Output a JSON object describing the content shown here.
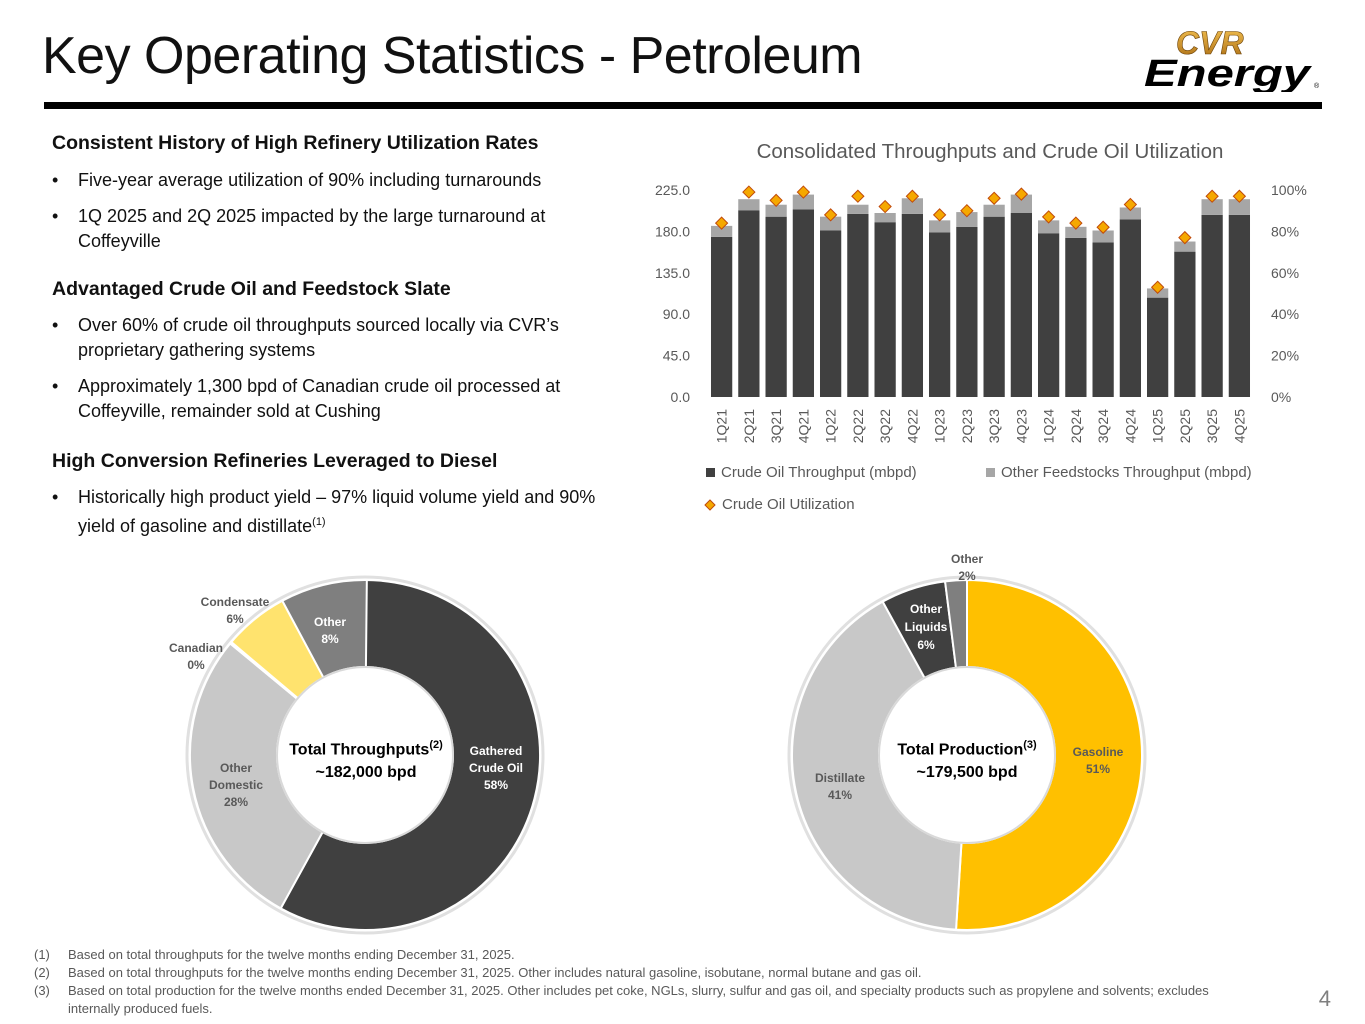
{
  "header": {
    "title": "Key Operating Statistics - Petroleum",
    "logo_line1": "CVR",
    "logo_line2": "Energy",
    "logo_mark": "®"
  },
  "sections": [
    {
      "heading": "Consistent History of High Refinery Utilization Rates",
      "bullets": [
        {
          "text": "Five-year average utilization of 90% including turnarounds",
          "sup": ""
        },
        {
          "text": "1Q 2025 and 2Q 2025 impacted by the large turnaround at Coffeyville",
          "sup": ""
        }
      ]
    },
    {
      "heading": "Advantaged Crude Oil and Feedstock Slate",
      "bullets": [
        {
          "text": "Over 60% of crude oil throughputs sourced locally via CVR’s proprietary gathering systems",
          "sup": ""
        },
        {
          "text": "Approximately 1,300 bpd of Canadian crude oil processed at Coffeyville, remainder sold at Cushing",
          "sup": ""
        }
      ]
    },
    {
      "heading": "High Conversion Refineries Leveraged to Diesel",
      "bullets": [
        {
          "text": "Historically high product yield – 97% liquid volume yield and 90% yield of gasoline and distillate",
          "sup": "(1)"
        }
      ]
    }
  ],
  "chart_data": [
    {
      "type": "bar",
      "title": "Consolidated Throughputs and Crude Oil Utilization",
      "categories": [
        "1Q21",
        "2Q21",
        "3Q21",
        "4Q21",
        "1Q22",
        "2Q22",
        "3Q22",
        "4Q22",
        "1Q23",
        "2Q23",
        "3Q23",
        "4Q23",
        "1Q24",
        "2Q24",
        "3Q24",
        "4Q24",
        "1Q25",
        "2Q25",
        "3Q25",
        "4Q25"
      ],
      "stacked": true,
      "series": [
        {
          "name": "Crude Oil Throughput (mbpd)",
          "color": "#404040",
          "axis": "left",
          "values": [
            174,
            203,
            196,
            204,
            181,
            199,
            190,
            199,
            179,
            185,
            196,
            200,
            178,
            173,
            168,
            193,
            108,
            158,
            198,
            198
          ]
        },
        {
          "name": "Other Feedstocks Throughput (mbpd)",
          "color": "#a6a6a6",
          "axis": "left",
          "values": [
            12,
            12,
            13,
            16,
            15,
            10,
            10,
            17,
            13,
            16,
            13,
            20,
            14,
            12,
            13,
            13,
            10,
            11,
            17,
            17
          ]
        },
        {
          "name": "Crude Oil Utilization",
          "type": "scatter",
          "marker": "diamond",
          "color": "#f5a800",
          "axis": "right",
          "values": [
            84,
            99,
            95,
            99,
            88,
            97,
            92,
            97,
            88,
            90,
            96,
            98,
            87,
            84,
            82,
            93,
            53,
            77,
            97,
            97
          ]
        }
      ],
      "ylim": [
        0,
        225
      ],
      "yticks": [
        "0.0",
        "45.0",
        "90.0",
        "135.0",
        "180.0",
        "225.0"
      ],
      "y2lim": [
        0,
        100
      ],
      "y2ticks": [
        "0%",
        "20%",
        "40%",
        "60%",
        "80%",
        "100%"
      ],
      "legend": "bottom",
      "grid": false
    },
    {
      "type": "pie",
      "donut": true,
      "center_label": "Total Throughputs",
      "center_sup": "(2)",
      "center_value": "~182,000 bpd",
      "labels": [
        "Gathered Crude Oil",
        "Other Domestic",
        "Canadian",
        "Condensate",
        "Other"
      ],
      "values": [
        58,
        28,
        0,
        6,
        8
      ],
      "display": [
        "58%",
        "28%",
        "0%",
        "6%",
        "8%"
      ],
      "colors": [
        "#404040",
        "#c8c8c8",
        "#bfbfbf",
        "#ffe36e",
        "#7f7f7f"
      ]
    },
    {
      "type": "pie",
      "donut": true,
      "center_label": "Total Production",
      "center_sup": "(3)",
      "center_value": "~179,500 bpd",
      "labels": [
        "Gasoline",
        "Distillate",
        "Other Liquids",
        "Other"
      ],
      "values": [
        51,
        41,
        6,
        2
      ],
      "display": [
        "51%",
        "41%",
        "6%",
        "2%"
      ],
      "colors": [
        "#ffc000",
        "#c8c8c8",
        "#404040",
        "#7f7f7f"
      ]
    }
  ],
  "footnotes": [
    {
      "num": "(1)",
      "text": "Based on total throughputs for the twelve months ending December 31, 2025."
    },
    {
      "num": "(2)",
      "text": "Based on total throughputs for the twelve months ending December 31, 2025. Other includes natural gasoline, isobutane, normal butane and gas oil."
    },
    {
      "num": "(3)",
      "text": "Based on total production for the twelve months ended December 31, 2025. Other includes pet coke, NGLs, slurry, sulfur and gas oil, and specialty products such as propylene and solvents; excludes internally produced fuels."
    }
  ],
  "page_number": "4"
}
